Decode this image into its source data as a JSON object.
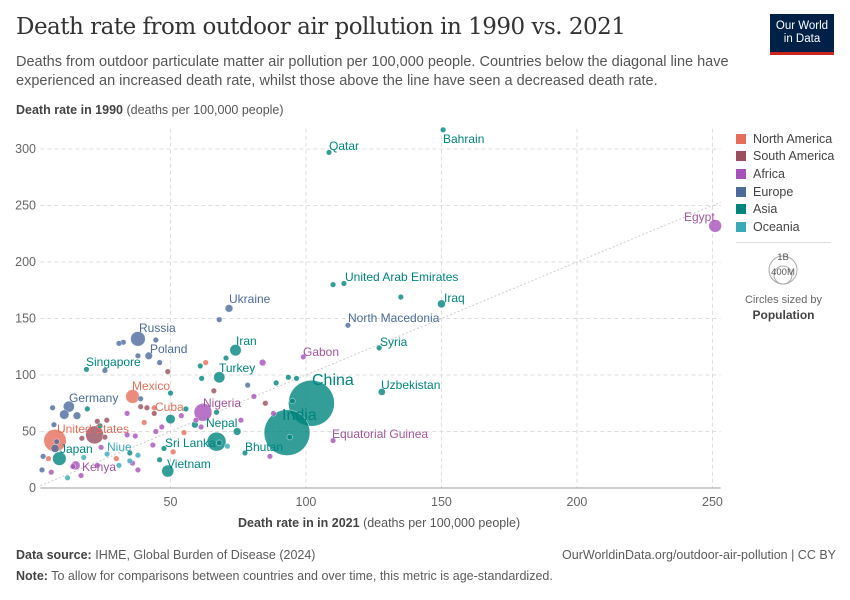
{
  "header": {
    "title": "Death rate from outdoor air pollution in 1990 vs. 2021",
    "subtitle": "Deaths from outdoor particulate matter air pollution per 100,000 people. Countries below the diagonal line have experienced an increased death rate, whilst those above the line have seen a decreased death rate.",
    "logo_line1": "Our World",
    "logo_line2": "in Data"
  },
  "footer": {
    "source_label": "Data source:",
    "source": "IHME, Global Burden of Disease (2024)",
    "url": "OurWorldinData.org/outdoor-air-pollution | CC BY",
    "note_label": "Note:",
    "note": "To allow for comparisons between countries and over time, this metric is age-standardized."
  },
  "size_legend": {
    "big": "1B",
    "small": "400M",
    "caption": "Circles sized by",
    "variable": "Population"
  },
  "chart_data": {
    "type": "scatter",
    "title": "Death rate from outdoor air pollution in 1990 vs. 2021",
    "ylabel_bold": "Death rate in 1990",
    "ylabel_rest": "(deaths per 100,000 people)",
    "xlabel_bold": "Death rate in in 2021",
    "xlabel_rest": "(deaths per 100,000 people)",
    "xlim": [
      2,
      253
    ],
    "ylim": [
      0,
      318
    ],
    "xticks": [
      50,
      100,
      150,
      200,
      250
    ],
    "yticks": [
      0,
      50,
      100,
      150,
      200,
      250,
      300
    ],
    "grid": true,
    "diagonal_reference_line": true,
    "legend_placement": "right",
    "size_variable": "Population",
    "colors": {
      "North America": "#E56E5A",
      "South America": "#9A4E5E",
      "Africa": "#A652BA",
      "Europe": "#4C6A9C",
      "Asia": "#00847E",
      "Oceania": "#38AABA"
    },
    "legend": [
      "North America",
      "South America",
      "Africa",
      "Europe",
      "Asia",
      "Oceania"
    ],
    "points": [
      {
        "label": "Bahrain",
        "x": 150.6,
        "y": 317,
        "region": "Asia",
        "pop_m": 1.5
      },
      {
        "label": "Qatar",
        "x": 108.5,
        "y": 297,
        "region": "Asia",
        "pop_m": 2.7
      },
      {
        "label": "Egypt",
        "x": 251,
        "y": 232,
        "region": "Africa",
        "pop_m": 110
      },
      {
        "label": "United Arab Emirates",
        "x": 114,
        "y": 181,
        "region": "Asia",
        "pop_m": 9.4
      },
      {
        "label": "Iraq",
        "x": 150,
        "y": 163,
        "region": "Asia",
        "pop_m": 43
      },
      {
        "label": "Ukraine",
        "x": 71.6,
        "y": 159,
        "region": "Europe",
        "pop_m": 40
      },
      {
        "label": "North Macedonia",
        "x": 115.5,
        "y": 144,
        "region": "Europe",
        "pop_m": 2
      },
      {
        "label": "Syria",
        "x": 127,
        "y": 124,
        "region": "Asia",
        "pop_m": 21
      },
      {
        "label": "Gabon",
        "x": 99,
        "y": 116,
        "region": "Africa",
        "pop_m": 2.3
      },
      {
        "label": "Iran",
        "x": 74,
        "y": 122,
        "region": "Asia",
        "pop_m": 88
      },
      {
        "label": "Russia",
        "x": 38,
        "y": 132,
        "region": "Europe",
        "pop_m": 145
      },
      {
        "label": "Poland",
        "x": 42,
        "y": 117,
        "region": "Europe",
        "pop_m": 38
      },
      {
        "label": "Singapore",
        "x": 19,
        "y": 105,
        "region": "Asia",
        "pop_m": 5.9
      },
      {
        "label": "Turkey",
        "x": 68,
        "y": 98,
        "region": "Asia",
        "pop_m": 85
      },
      {
        "label": "China",
        "x": 102,
        "y": 75,
        "region": "Asia",
        "pop_m": 1420
      },
      {
        "label": "Uzbekistan",
        "x": 128,
        "y": 85,
        "region": "Asia",
        "pop_m": 34
      },
      {
        "label": "Mexico",
        "x": 36,
        "y": 81,
        "region": "North America",
        "pop_m": 126
      },
      {
        "label": "Germany",
        "x": 12.5,
        "y": 72,
        "region": "Europe",
        "pop_m": 83
      },
      {
        "label": "Cuba",
        "x": 44,
        "y": 71,
        "region": "North America",
        "pop_m": 11
      },
      {
        "label": "Nigeria",
        "x": 62,
        "y": 67,
        "region": "Africa",
        "pop_m": 213
      },
      {
        "label": "India",
        "x": 93,
        "y": 49,
        "region": "Asia",
        "pop_m": 1410
      },
      {
        "label": "Nepal",
        "x": 59,
        "y": 56,
        "region": "Asia",
        "pop_m": 30
      },
      {
        "label": "United States",
        "x": 7.4,
        "y": 42,
        "region": "North America",
        "pop_m": 336
      },
      {
        "label": "Equatorial Guinea",
        "x": 110,
        "y": 42,
        "region": "Africa",
        "pop_m": 1.6
      },
      {
        "label": "Sri Lanka",
        "x": 68,
        "y": 40,
        "region": "Asia",
        "pop_m": 22
      },
      {
        "label": "Bhutan",
        "x": 77.5,
        "y": 31,
        "region": "Asia",
        "pop_m": 0.8
      },
      {
        "label": "Japan",
        "x": 9,
        "y": 26,
        "region": "Asia",
        "pop_m": 125
      },
      {
        "label": "Niue",
        "x": 35,
        "y": 24,
        "region": "Oceania",
        "pop_m": 0.002
      },
      {
        "label": "Kenya",
        "x": 15,
        "y": 20,
        "region": "Africa",
        "pop_m": 54
      },
      {
        "label": "Vietnam",
        "x": 49,
        "y": 15,
        "region": "Asia",
        "pop_m": 98
      },
      {
        "x": 110,
        "y": 180,
        "region": "Asia",
        "pop_m": 3
      },
      {
        "x": 135,
        "y": 169,
        "region": "Asia",
        "pop_m": 4
      },
      {
        "x": 68,
        "y": 149,
        "region": "Europe",
        "pop_m": 3
      },
      {
        "x": 31,
        "y": 128,
        "region": "Europe",
        "pop_m": 5
      },
      {
        "x": 32.6,
        "y": 129,
        "region": "Europe",
        "pop_m": 6
      },
      {
        "x": 44.6,
        "y": 131,
        "region": "Europe",
        "pop_m": 4
      },
      {
        "x": 46,
        "y": 111,
        "region": "Europe",
        "pop_m": 10
      },
      {
        "x": 38,
        "y": 117,
        "region": "Europe",
        "pop_m": 5
      },
      {
        "x": 49,
        "y": 103,
        "region": "South America",
        "pop_m": 3
      },
      {
        "x": 25.8,
        "y": 104,
        "region": "Europe",
        "pop_m": 3
      },
      {
        "x": 61,
        "y": 108,
        "region": "Asia",
        "pop_m": 5
      },
      {
        "x": 63,
        "y": 111,
        "region": "North America",
        "pop_m": 4
      },
      {
        "x": 70.5,
        "y": 115,
        "region": "Asia",
        "pop_m": 5
      },
      {
        "x": 84,
        "y": 111,
        "region": "Africa",
        "pop_m": 30
      },
      {
        "x": 61.5,
        "y": 97,
        "region": "Asia",
        "pop_m": 4
      },
      {
        "x": 78.5,
        "y": 91,
        "region": "Europe",
        "pop_m": 4
      },
      {
        "x": 66,
        "y": 86,
        "region": "South America",
        "pop_m": 4
      },
      {
        "x": 89,
        "y": 93,
        "region": "Asia",
        "pop_m": 5
      },
      {
        "x": 93.5,
        "y": 98,
        "region": "Asia",
        "pop_m": 4
      },
      {
        "x": 96.5,
        "y": 97,
        "region": "Asia",
        "pop_m": 4
      },
      {
        "x": 50,
        "y": 84,
        "region": "Asia",
        "pop_m": 3
      },
      {
        "x": 80.8,
        "y": 81,
        "region": "Africa",
        "pop_m": 4
      },
      {
        "x": 85,
        "y": 75,
        "region": "South America",
        "pop_m": 4
      },
      {
        "x": 95,
        "y": 77,
        "region": "Asia",
        "pop_m": 5
      },
      {
        "x": 39,
        "y": 79,
        "region": "Europe",
        "pop_m": 5
      },
      {
        "x": 6.5,
        "y": 71,
        "region": "Europe",
        "pop_m": 4
      },
      {
        "x": 19.3,
        "y": 70,
        "region": "Asia",
        "pop_m": 3
      },
      {
        "x": 10.8,
        "y": 65,
        "region": "Europe",
        "pop_m": 60
      },
      {
        "x": 15.5,
        "y": 64,
        "region": "Europe",
        "pop_m": 40
      },
      {
        "x": 39,
        "y": 72,
        "region": "South America",
        "pop_m": 12
      },
      {
        "x": 41.3,
        "y": 71,
        "region": "South America",
        "pop_m": 10
      },
      {
        "x": 44,
        "y": 66,
        "region": "South America",
        "pop_m": 8
      },
      {
        "x": 34,
        "y": 66,
        "region": "Africa",
        "pop_m": 5
      },
      {
        "x": 55.7,
        "y": 70,
        "region": "Asia",
        "pop_m": 3
      },
      {
        "x": 88,
        "y": 66,
        "region": "Africa",
        "pop_m": 15
      },
      {
        "x": 67,
        "y": 67,
        "region": "Asia",
        "pop_m": 3
      },
      {
        "x": 50,
        "y": 61,
        "region": "Asia",
        "pop_m": 60
      },
      {
        "x": 54,
        "y": 64,
        "region": "Africa",
        "pop_m": 4
      },
      {
        "x": 59.4,
        "y": 60,
        "region": "Africa",
        "pop_m": 4
      },
      {
        "x": 76,
        "y": 60,
        "region": "Africa",
        "pop_m": 3
      },
      {
        "x": 61.3,
        "y": 54,
        "region": "Africa",
        "pop_m": 4
      },
      {
        "x": 74.6,
        "y": 50,
        "region": "Asia",
        "pop_m": 40
      },
      {
        "x": 26.5,
        "y": 60,
        "region": "South America",
        "pop_m": 20
      },
      {
        "x": 23,
        "y": 59,
        "region": "South America",
        "pop_m": 12
      },
      {
        "x": 7,
        "y": 56,
        "region": "Europe",
        "pop_m": 5
      },
      {
        "x": 24,
        "y": 55,
        "region": "Asia",
        "pop_m": 3
      },
      {
        "x": 40.3,
        "y": 58,
        "region": "North America",
        "pop_m": 4
      },
      {
        "x": 46.8,
        "y": 54,
        "region": "Africa",
        "pop_m": 4
      },
      {
        "x": 55,
        "y": 49,
        "region": "North America",
        "pop_m": 4
      },
      {
        "x": 44.6,
        "y": 50,
        "region": "Africa",
        "pop_m": 4
      },
      {
        "x": 34,
        "y": 47,
        "region": "Africa",
        "pop_m": 4
      },
      {
        "x": 37,
        "y": 46,
        "region": "Africa",
        "pop_m": 4
      },
      {
        "x": 17.3,
        "y": 44,
        "region": "South America",
        "pop_m": 5
      },
      {
        "x": 25.8,
        "y": 45,
        "region": "South America",
        "pop_m": 4
      },
      {
        "x": 22,
        "y": 47,
        "region": "South America",
        "pop_m": 215
      },
      {
        "x": 8,
        "y": 41,
        "region": "Europe",
        "pop_m": 20
      },
      {
        "x": 43.5,
        "y": 38,
        "region": "Africa",
        "pop_m": 4
      },
      {
        "x": 94,
        "y": 45,
        "region": "Asia",
        "pop_m": 3
      },
      {
        "x": 7.4,
        "y": 35,
        "region": "Europe",
        "pop_m": 45
      },
      {
        "x": 24.4,
        "y": 36,
        "region": "Africa",
        "pop_m": 4
      },
      {
        "x": 71,
        "y": 37,
        "region": "Oceania",
        "pop_m": 4
      },
      {
        "x": 67,
        "y": 41,
        "region": "Asia",
        "pop_m": 240
      },
      {
        "x": 26.6,
        "y": 30,
        "region": "Oceania",
        "pop_m": 4
      },
      {
        "x": 35,
        "y": 31,
        "region": "Asia",
        "pop_m": 4
      },
      {
        "x": 38,
        "y": 29,
        "region": "Oceania",
        "pop_m": 4
      },
      {
        "x": 51,
        "y": 32,
        "region": "North America",
        "pop_m": 4
      },
      {
        "x": 47.6,
        "y": 35,
        "region": "Asia",
        "pop_m": 3
      },
      {
        "x": 86.7,
        "y": 28,
        "region": "Africa",
        "pop_m": 4
      },
      {
        "x": 3,
        "y": 28,
        "region": "Europe",
        "pop_m": 4
      },
      {
        "x": 2.6,
        "y": 16,
        "region": "Europe",
        "pop_m": 4
      },
      {
        "x": 14,
        "y": 19,
        "region": "Africa",
        "pop_m": 20
      },
      {
        "x": 31,
        "y": 20,
        "region": "Oceania",
        "pop_m": 4
      },
      {
        "x": 36,
        "y": 22,
        "region": "Africa",
        "pop_m": 4
      },
      {
        "x": 38,
        "y": 16,
        "region": "Africa",
        "pop_m": 4
      },
      {
        "x": 17,
        "y": 11,
        "region": "Africa",
        "pop_m": 4
      },
      {
        "x": 12,
        "y": 9,
        "region": "Oceania",
        "pop_m": 4
      },
      {
        "x": 46,
        "y": 25,
        "region": "Asia",
        "pop_m": 3
      },
      {
        "x": 6,
        "y": 14,
        "region": "Africa",
        "pop_m": 4
      },
      {
        "x": 23,
        "y": 20,
        "region": "Africa",
        "pop_m": 4
      },
      {
        "x": 5,
        "y": 26,
        "region": "North America",
        "pop_m": 4
      },
      {
        "x": 18,
        "y": 27,
        "region": "Oceania",
        "pop_m": 4
      },
      {
        "x": 30,
        "y": 26,
        "region": "North America",
        "pop_m": 4
      }
    ]
  }
}
